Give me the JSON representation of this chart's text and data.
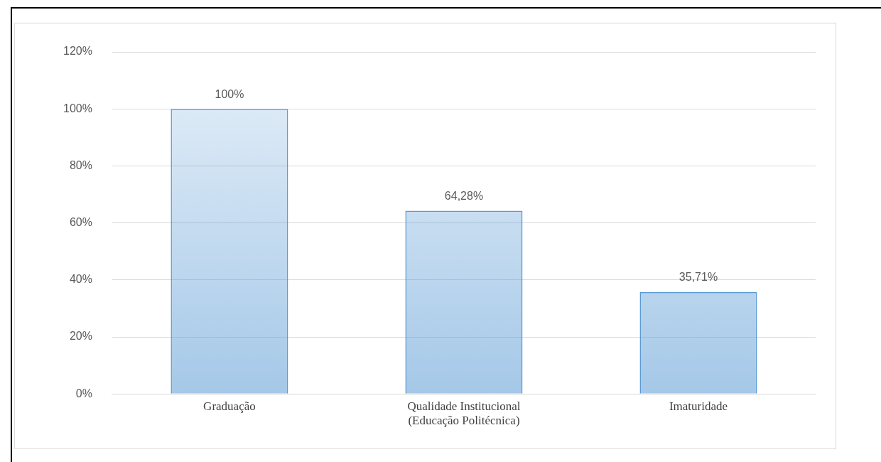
{
  "chart_data": {
    "type": "bar",
    "categories": [
      "Graduação",
      "Qualidade Institucional\n(Educação Politécnica)",
      "Imaturidade"
    ],
    "values": [
      100,
      64.28,
      35.71
    ],
    "value_labels": [
      "100%",
      "64,28%",
      "35,71%"
    ],
    "color": "#5b9bd5",
    "ylim": [
      0,
      120
    ],
    "yticks": [
      {
        "value": 0,
        "label": "0%"
      },
      {
        "value": 20,
        "label": "20%"
      },
      {
        "value": 40,
        "label": "40%"
      },
      {
        "value": 60,
        "label": "60%"
      },
      {
        "value": 80,
        "label": "80%"
      },
      {
        "value": 100,
        "label": "100%"
      },
      {
        "value": 120,
        "label": "120%"
      }
    ],
    "grid": "y",
    "legend": false
  }
}
